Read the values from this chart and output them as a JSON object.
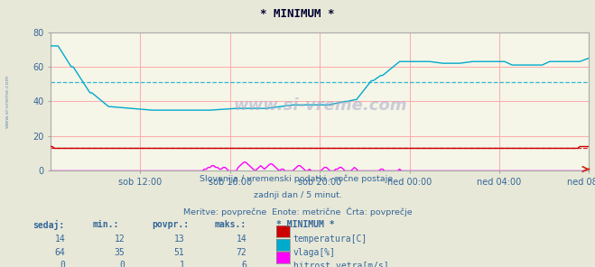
{
  "title": "* MINIMUM *",
  "bg_color": "#e8e8d8",
  "plot_bg_color": "#f5f5e8",
  "xlabel_times": [
    "sob 12:00",
    "sob 16:00",
    "sob 20:00",
    "ned 00:00",
    "ned 04:00",
    "ned 08:00"
  ],
  "ylim": [
    0,
    80
  ],
  "yticks": [
    0,
    20,
    40,
    60,
    80
  ],
  "subtitle1": "Slovenija / vremenski podatki - ročne postaje.",
  "subtitle2": "zadnji dan / 5 minut.",
  "subtitle3": "Meritve: povprečne  Enote: metrične  Črta: povprečje",
  "watermark": "www.si-vreme.com",
  "temp_color": "#cc0000",
  "humidity_color": "#00aacc",
  "wind_color": "#ff00ff",
  "temp_avg": 13,
  "humidity_avg": 51,
  "wind_avg": 1,
  "legend_headers": [
    "sedaj:",
    "min.:",
    "povpr.:",
    "maks.:",
    "* MINIMUM *"
  ],
  "legend_rows": [
    [
      14,
      12,
      13,
      14,
      "temperatura[C]",
      "#cc0000"
    ],
    [
      64,
      35,
      51,
      72,
      "vlaga[%]",
      "#00aacc"
    ],
    [
      0,
      0,
      1,
      6,
      "hitrost vetra[m/s]",
      "#ff00ff"
    ]
  ],
  "n_points": 288
}
